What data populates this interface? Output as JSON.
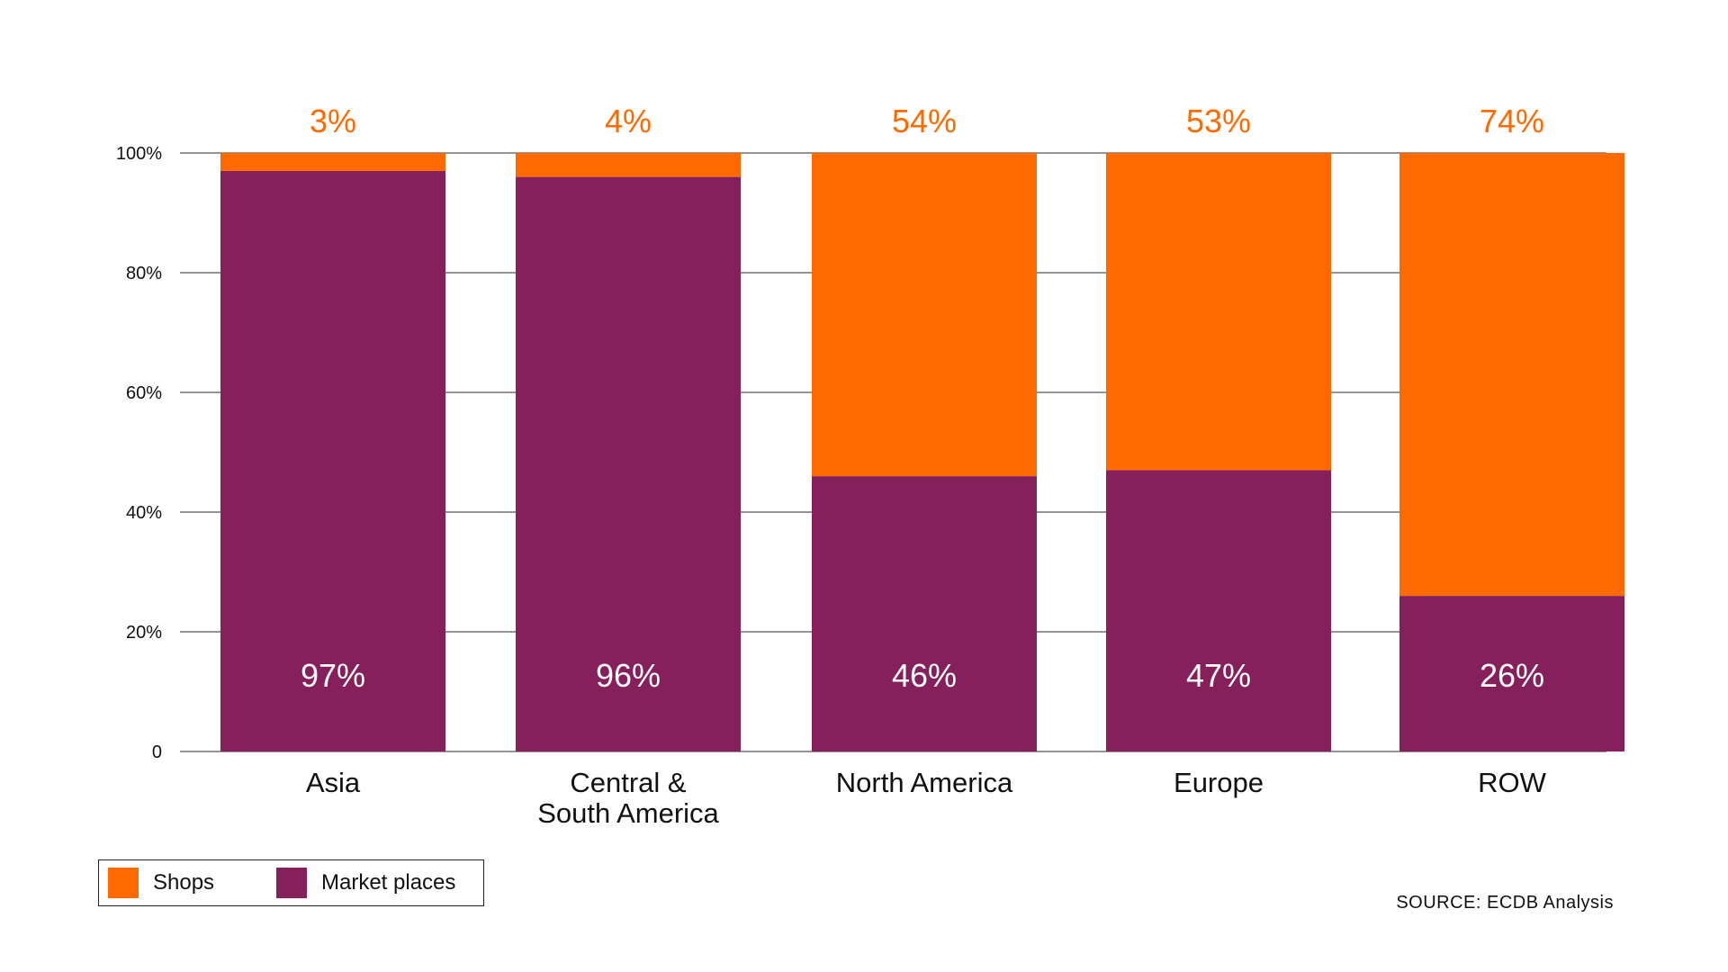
{
  "chart_data": {
    "type": "bar",
    "stacked": true,
    "categories": [
      "Asia",
      "Central & South America",
      "North America",
      "Europe",
      "ROW"
    ],
    "category_lines": [
      [
        "Asia"
      ],
      [
        "Central &",
        "South America"
      ],
      [
        "North America"
      ],
      [
        "Europe"
      ],
      [
        "ROW"
      ]
    ],
    "series": [
      {
        "name": "Market places",
        "color": "#86205c",
        "values": [
          97,
          96,
          46,
          47,
          26
        ],
        "labels": [
          "97%",
          "96%",
          "46%",
          "47%",
          "26%"
        ]
      },
      {
        "name": "Shops",
        "color": "#ff6a00",
        "values": [
          3,
          4,
          54,
          53,
          74
        ],
        "labels": [
          "3%",
          "4%",
          "54%",
          "53%",
          "74%"
        ]
      }
    ],
    "ylim": [
      0,
      100
    ],
    "yticks": [
      0,
      20,
      40,
      60,
      80,
      100
    ],
    "ytick_labels": [
      "0",
      "20%",
      "40%",
      "60%",
      "80%",
      "100%"
    ],
    "grid": true,
    "legend_position": "bottom-left"
  },
  "legend": {
    "items": [
      {
        "label": "Shops",
        "color": "#ff6a00"
      },
      {
        "label": "Market places",
        "color": "#86205c"
      }
    ]
  },
  "source": "SOURCE: ECDB Analysis"
}
